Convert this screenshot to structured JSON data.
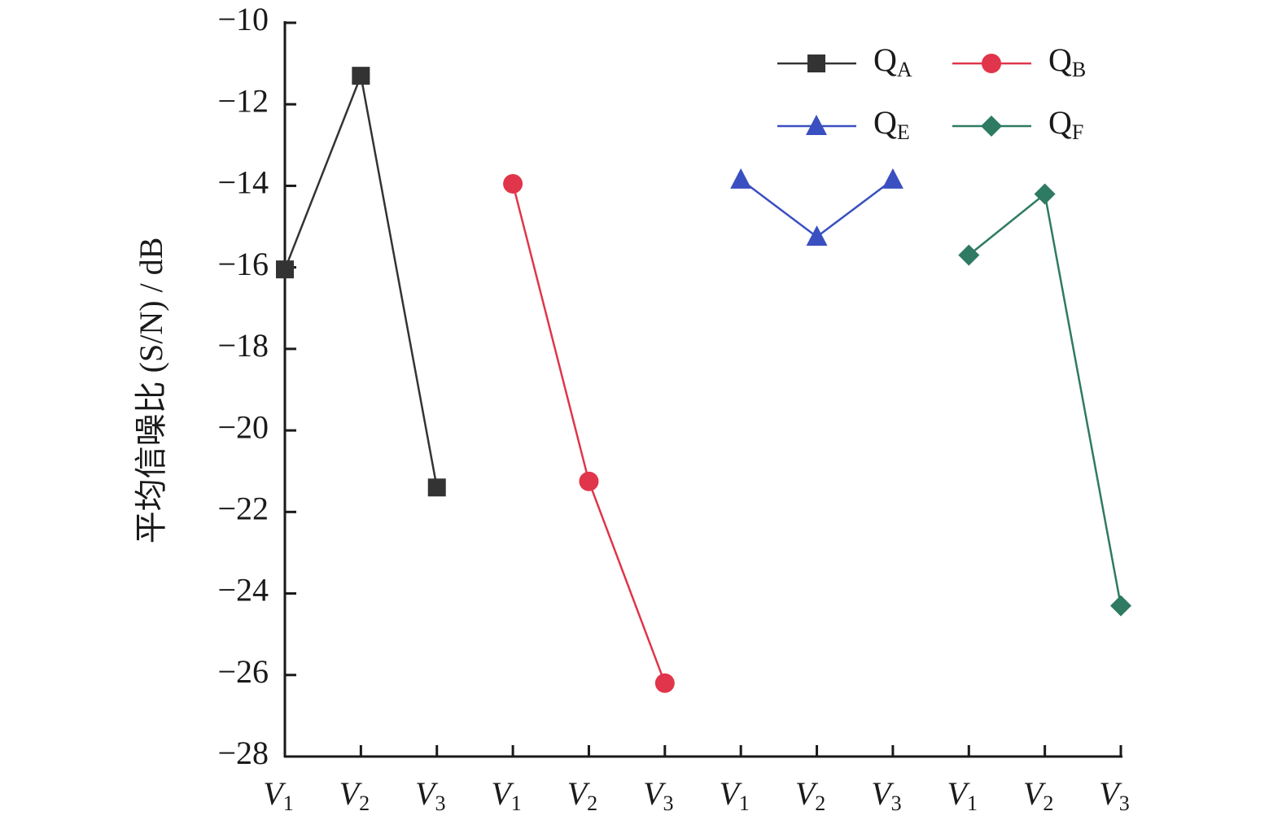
{
  "chart_data": {
    "type": "line",
    "y_label": "平均信噪比 (S/N) / dB",
    "categories": [
      "V1",
      "V2",
      "V3",
      "V1",
      "V2",
      "V3",
      "V1",
      "V2",
      "V3",
      "V1",
      "V2",
      "V3"
    ],
    "series": [
      {
        "name": "QA",
        "color": "#333333",
        "marker": "square",
        "values": [
          -16.05,
          -11.3,
          -21.4,
          null,
          null,
          null,
          null,
          null,
          null,
          null,
          null,
          null
        ]
      },
      {
        "name": "QB",
        "color": "#e0354a",
        "marker": "circle",
        "values": [
          null,
          null,
          null,
          -13.95,
          -21.25,
          -26.2,
          null,
          null,
          null,
          null,
          null,
          null
        ]
      },
      {
        "name": "QE",
        "color": "#3a4fc0",
        "marker": "triangle",
        "values": [
          null,
          null,
          null,
          null,
          null,
          null,
          -13.85,
          -15.25,
          -13.85,
          null,
          null,
          null
        ]
      },
      {
        "name": "QF",
        "color": "#2e7a62",
        "marker": "diamond",
        "values": [
          null,
          null,
          null,
          null,
          null,
          null,
          null,
          null,
          null,
          -15.7,
          -14.2,
          -24.3
        ]
      }
    ],
    "ylim": [
      -28,
      -10
    ],
    "yticks": [
      {
        "value": -28,
        "label": "−28"
      },
      {
        "value": -26,
        "label": "−26"
      },
      {
        "value": -24,
        "label": "−24"
      },
      {
        "value": -22,
        "label": "−22"
      },
      {
        "value": -20,
        "label": "−20"
      },
      {
        "value": -18,
        "label": "−18"
      },
      {
        "value": -16,
        "label": "−16"
      },
      {
        "value": -14,
        "label": "−14"
      },
      {
        "value": -12,
        "label": "−12"
      },
      {
        "value": -10,
        "label": "−10"
      }
    ],
    "legend": "upper right"
  }
}
